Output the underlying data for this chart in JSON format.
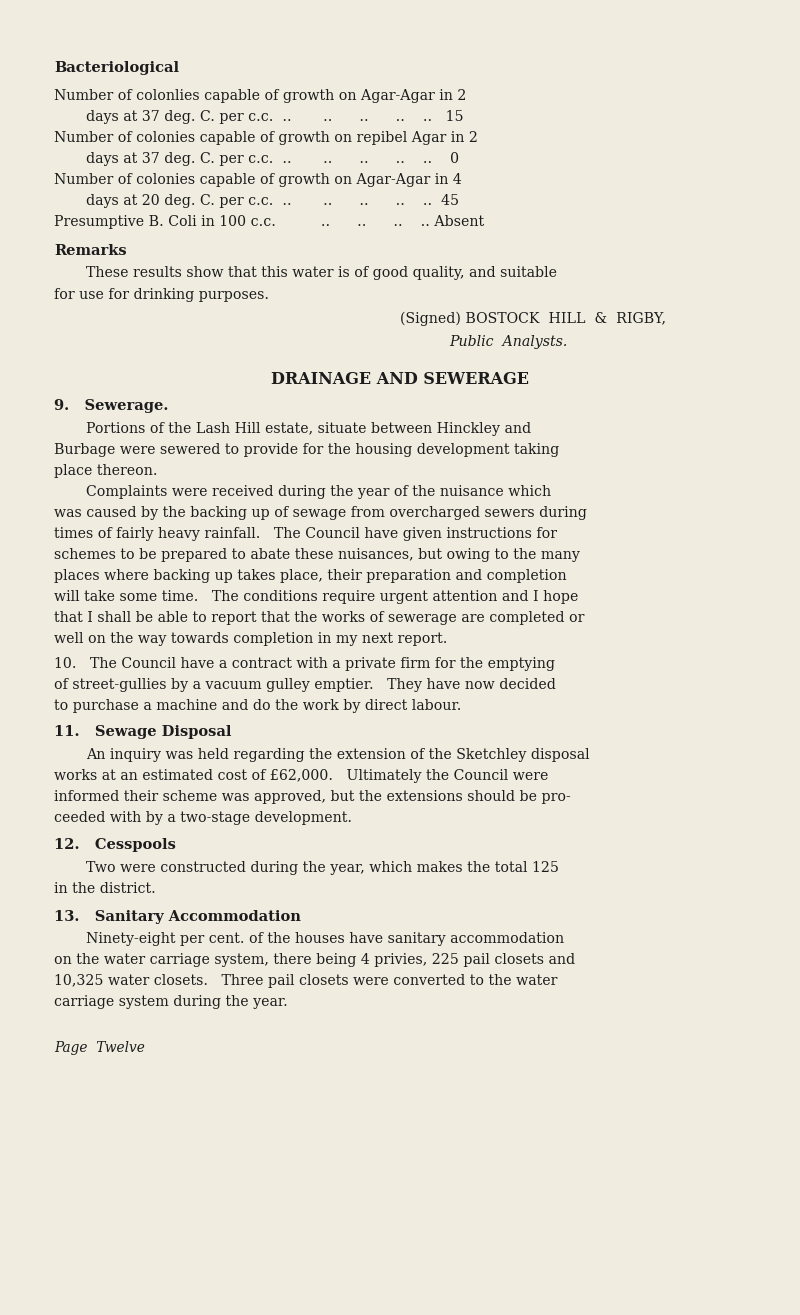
{
  "bg_color": "#f0ece0",
  "text_color": "#1c1c1c",
  "page_width": 8.0,
  "page_height": 13.15,
  "dpi": 100,
  "content": [
    {
      "type": "bold",
      "xn": 0.068,
      "yn": 0.945,
      "text": "Bacteriological",
      "size": 10.5
    },
    {
      "type": "normal",
      "xn": 0.068,
      "yn": 0.924,
      "text": "Number of colonlies capable of growth on Agar-Agar in 2",
      "size": 10.2
    },
    {
      "type": "normal",
      "xn": 0.108,
      "yn": 0.908,
      "text": "days at 37 deg. C. per c.c.  ..       ..      ..      ..    ..   15",
      "size": 10.2
    },
    {
      "type": "normal",
      "xn": 0.068,
      "yn": 0.892,
      "text": "Number of colonies capable of growth on repibel Agar in 2",
      "size": 10.2
    },
    {
      "type": "normal",
      "xn": 0.108,
      "yn": 0.876,
      "text": "days at 37 deg. C. per c.c.  ..       ..      ..      ..    ..    0",
      "size": 10.2
    },
    {
      "type": "normal",
      "xn": 0.068,
      "yn": 0.86,
      "text": "Number of colonies capable of growth on Agar-Agar in 4",
      "size": 10.2
    },
    {
      "type": "normal",
      "xn": 0.108,
      "yn": 0.844,
      "text": "days at 20 deg. C. per c.c.  ..       ..      ..      ..    ..  45",
      "size": 10.2
    },
    {
      "type": "normal",
      "xn": 0.068,
      "yn": 0.828,
      "text": "Presumptive B. Coli in 100 c.c.          ..      ..      ..    .. Absent",
      "size": 10.2
    },
    {
      "type": "bold",
      "xn": 0.068,
      "yn": 0.806,
      "text": "Remarks",
      "size": 10.5
    },
    {
      "type": "normal",
      "xn": 0.108,
      "yn": 0.789,
      "text": "These results show that this water is of good quality, and suitable",
      "size": 10.2
    },
    {
      "type": "normal",
      "xn": 0.068,
      "yn": 0.773,
      "text": "for use for drinking purposes.",
      "size": 10.2
    },
    {
      "type": "normal",
      "xn": 0.5,
      "yn": 0.754,
      "text": "(Signed) BOSTOCK  HILL  &  RIGBY,",
      "size": 10.2
    },
    {
      "type": "italic",
      "xn": 0.562,
      "yn": 0.737,
      "text": "Public  Analysts.",
      "size": 10.2
    },
    {
      "type": "centered_bold",
      "xn": 0.5,
      "yn": 0.708,
      "text": "DRAINAGE AND SEWERAGE",
      "size": 11.5
    },
    {
      "type": "normal",
      "xn": 0.068,
      "yn": 0.688,
      "text": "9.   Sewerage.",
      "size": 10.5,
      "bold": true
    },
    {
      "type": "normal",
      "xn": 0.108,
      "yn": 0.671,
      "text": "Portions of the Lash Hill estate, situate between Hinckley and",
      "size": 10.2
    },
    {
      "type": "normal",
      "xn": 0.068,
      "yn": 0.655,
      "text": "Burbage were sewered to provide for the housing development taking",
      "size": 10.2
    },
    {
      "type": "normal",
      "xn": 0.068,
      "yn": 0.639,
      "text": "place thereon.",
      "size": 10.2
    },
    {
      "type": "normal",
      "xn": 0.108,
      "yn": 0.623,
      "text": "Complaints were received during the year of the nuisance which",
      "size": 10.2
    },
    {
      "type": "normal",
      "xn": 0.068,
      "yn": 0.607,
      "text": "was caused by the backing up of sewage from overcharged sewers during",
      "size": 10.2
    },
    {
      "type": "normal",
      "xn": 0.068,
      "yn": 0.591,
      "text": "times of fairly heavy rainfall.   The Council have given instructions for",
      "size": 10.2
    },
    {
      "type": "normal",
      "xn": 0.068,
      "yn": 0.575,
      "text": "schemes to be prepared to abate these nuisances, but owing to the many",
      "size": 10.2
    },
    {
      "type": "normal",
      "xn": 0.068,
      "yn": 0.559,
      "text": "places where backing up takes place, their preparation and completion",
      "size": 10.2
    },
    {
      "type": "normal",
      "xn": 0.068,
      "yn": 0.543,
      "text": "will take some time.   The conditions require urgent attention and I hope",
      "size": 10.2
    },
    {
      "type": "normal",
      "xn": 0.068,
      "yn": 0.527,
      "text": "that I shall be able to report that the works of sewerage are completed or",
      "size": 10.2
    },
    {
      "type": "normal",
      "xn": 0.068,
      "yn": 0.511,
      "text": "well on the way towards completion in my next report.",
      "size": 10.2
    },
    {
      "type": "normal",
      "xn": 0.068,
      "yn": 0.492,
      "text": "10.   The Council have a contract with a private firm for the emptying",
      "size": 10.2
    },
    {
      "type": "normal",
      "xn": 0.068,
      "yn": 0.476,
      "text": "of street-gullies by a vacuum gulley emptier.   They have now decided",
      "size": 10.2
    },
    {
      "type": "normal",
      "xn": 0.068,
      "yn": 0.46,
      "text": "to purchase a machine and do the work by direct labour.",
      "size": 10.2
    },
    {
      "type": "bold_num",
      "xn": 0.068,
      "yn": 0.44,
      "text": "11.   Sewage Disposal",
      "size": 10.5
    },
    {
      "type": "normal",
      "xn": 0.108,
      "yn": 0.423,
      "text": "An inquiry was held regarding the extension of the Sketchley disposal",
      "size": 10.2
    },
    {
      "type": "normal",
      "xn": 0.068,
      "yn": 0.407,
      "text": "works at an estimated cost of £62,000.   Ultimately the Council were",
      "size": 10.2
    },
    {
      "type": "normal",
      "xn": 0.068,
      "yn": 0.391,
      "text": "informed their scheme was approved, but the extensions should be pro-",
      "size": 10.2
    },
    {
      "type": "normal",
      "xn": 0.068,
      "yn": 0.375,
      "text": "ceeded with by a two-stage development.",
      "size": 10.2
    },
    {
      "type": "bold_num",
      "xn": 0.068,
      "yn": 0.354,
      "text": "12.   Cesspools",
      "size": 10.5
    },
    {
      "type": "normal",
      "xn": 0.108,
      "yn": 0.337,
      "text": "Two were constructed during the year, which makes the total 125",
      "size": 10.2
    },
    {
      "type": "normal",
      "xn": 0.068,
      "yn": 0.321,
      "text": "in the district.",
      "size": 10.2
    },
    {
      "type": "bold_num",
      "xn": 0.068,
      "yn": 0.3,
      "text": "13.   Sanitary Accommodation",
      "size": 10.5
    },
    {
      "type": "normal",
      "xn": 0.108,
      "yn": 0.283,
      "text": "Ninety-eight per cent. of the houses have sanitary accommodation",
      "size": 10.2
    },
    {
      "type": "normal",
      "xn": 0.068,
      "yn": 0.267,
      "text": "on the water carriage system, there being 4 privies, 225 pail closets and",
      "size": 10.2
    },
    {
      "type": "normal",
      "xn": 0.068,
      "yn": 0.251,
      "text": "10,325 water closets.   Three pail closets were converted to the water",
      "size": 10.2
    },
    {
      "type": "normal",
      "xn": 0.068,
      "yn": 0.235,
      "text": "carriage system during the year.",
      "size": 10.2
    },
    {
      "type": "italic",
      "xn": 0.068,
      "yn": 0.2,
      "text": "Page  Twelve",
      "size": 9.8
    }
  ]
}
